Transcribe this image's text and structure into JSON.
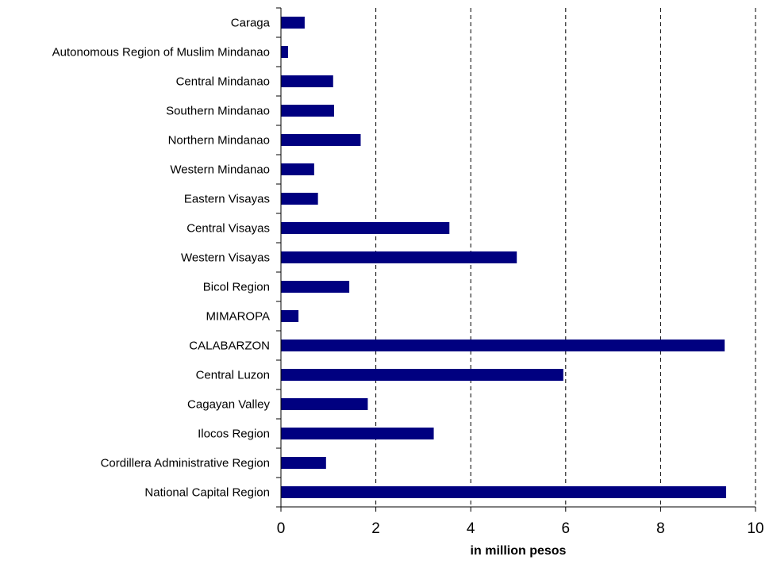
{
  "chart_data": {
    "type": "bar",
    "orientation": "horizontal",
    "title": "",
    "xlabel": "in million pesos",
    "ylabel": "",
    "xlim": [
      0,
      10
    ],
    "xticks": [
      "0",
      "2",
      "4",
      "6",
      "8",
      "10"
    ],
    "grid": "vertical-dashed",
    "bar_color": "#000080",
    "categories": [
      "Caraga",
      "Autonomous Region of Muslim Mindanao",
      "Central Mindanao",
      "Southern Mindanao",
      "Northern Mindanao",
      "Western Mindanao",
      "Eastern Visayas",
      "Central Visayas",
      "Western Visayas",
      "Bicol Region",
      "MIMAROPA",
      "CALABARZON",
      "Central Luzon",
      "Cagayan Valley",
      "Ilocos Region",
      "Cordillera Administrative Region",
      "National Capital Region"
    ],
    "values": [
      0.5,
      0.15,
      1.1,
      1.12,
      1.68,
      0.7,
      0.78,
      3.55,
      4.97,
      1.44,
      0.37,
      9.35,
      5.95,
      1.83,
      3.22,
      0.95,
      9.38
    ]
  }
}
